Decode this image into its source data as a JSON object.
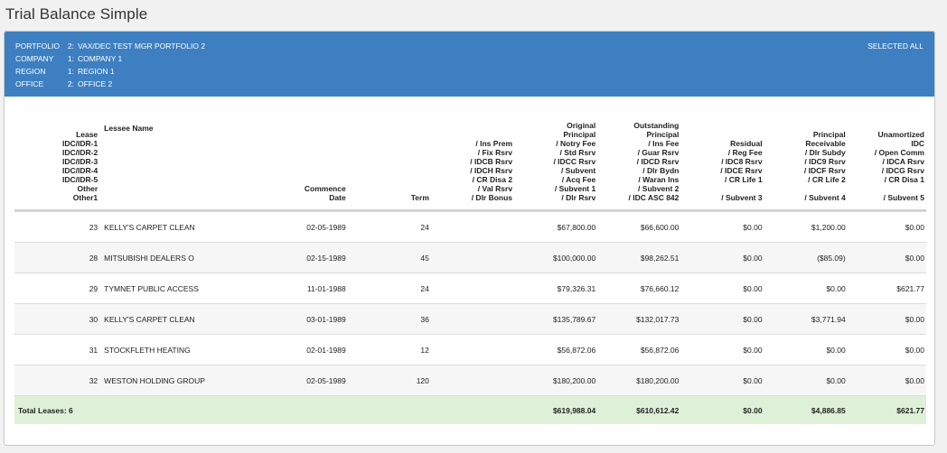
{
  "page": {
    "title": "Trial Balance Simple"
  },
  "filters": {
    "selected_label": "SELECTED ALL",
    "rows": [
      {
        "label": "PORTFOLIO",
        "num": "2:",
        "value": "VAX/DEC TEST MGR PORTFOLIO 2"
      },
      {
        "label": "COMPANY",
        "num": "1:",
        "value": "COMPANY 1"
      },
      {
        "label": "REGION",
        "num": "1:",
        "value": "REGION 1"
      },
      {
        "label": "OFFICE",
        "num": "2:",
        "value": "OFFICE 2"
      }
    ]
  },
  "headers": {
    "lease": [
      "Lease",
      "IDC/IDR-1",
      "IDC/IDR-2",
      "IDC/IDR-3",
      "IDC/IDR-4",
      "IDC/IDR-5",
      "Other",
      "Other1"
    ],
    "lessee": [
      "Lessee Name"
    ],
    "commence": [
      "Commence",
      "Date"
    ],
    "term": [
      "Term"
    ],
    "ins": [
      "/ Ins Prem",
      "/ Fix Rsrv",
      "/ IDCB Rsrv",
      "/ IDCH Rsrv",
      "/ CR Disa 2",
      "/ Val Rsrv",
      "/ Dlr Bonus"
    ],
    "original": [
      "Original",
      "Principal",
      "/ Notry Fee",
      "/ Std Rsrv",
      "/ IDCC Rsrv",
      "/ Subvent",
      "/ Acq Fee",
      "/ Subvent 1",
      "/ Dlr Rsrv"
    ],
    "outstanding": [
      "Outstanding",
      "Principal",
      "/ Ins Fee",
      "/ Guar Rsrv",
      "/ IDCD Rsrv",
      "/ Dlr Bydn",
      "/ Waran Ins",
      "/ Subvent 2",
      "/ IDC ASC 842"
    ],
    "residual": [
      "Residual",
      "/ Reg Fee",
      "/ IDC8 Rsrv",
      "/ IDCE Rsrv",
      "/ CR Life 1",
      "",
      "/ Subvent 3"
    ],
    "receivable": [
      "Principal",
      "Receivable",
      "/ Dlr Subdy",
      "/ IDC9 Rsrv",
      "/ IDCF Rsrv",
      "/ CR Life 2",
      "",
      "/ Subvent 4"
    ],
    "unamortized": [
      "Unamortized",
      "IDC",
      "/ Open Comm",
      "/ IDCA Rsrv",
      "/ IDCG Rsrv",
      "/ CR Disa 1",
      "",
      "/ Subvent 5"
    ]
  },
  "rows": [
    {
      "lease": "23",
      "lessee": "KELLY'S CARPET CLEAN",
      "date": "02-05-1989",
      "term": "24",
      "original": "$67,800.00",
      "outstanding": "$66,600.00",
      "residual": "$0.00",
      "receivable": "$1,200.00",
      "unamortized": "$0.00"
    },
    {
      "lease": "28",
      "lessee": "MITSUBISHI DEALERS O",
      "date": "02-15-1989",
      "term": "45",
      "original": "$100,000.00",
      "outstanding": "$98,262.51",
      "residual": "$0.00",
      "receivable": "($85.09)",
      "unamortized": "$0.00"
    },
    {
      "lease": "29",
      "lessee": "TYMNET PUBLIC ACCESS",
      "date": "11-01-1988",
      "term": "24",
      "original": "$79,326.31",
      "outstanding": "$76,660.12",
      "residual": "$0.00",
      "receivable": "$0.00",
      "unamortized": "$621.77"
    },
    {
      "lease": "30",
      "lessee": "KELLY'S CARPET CLEAN",
      "date": "03-01-1989",
      "term": "36",
      "original": "$135,789.67",
      "outstanding": "$132,017.73",
      "residual": "$0.00",
      "receivable": "$3,771.94",
      "unamortized": "$0.00"
    },
    {
      "lease": "31",
      "lessee": "STOCKFLETH HEATING",
      "date": "02-01-1989",
      "term": "12",
      "original": "$56,872.06",
      "outstanding": "$56,872.06",
      "residual": "$0.00",
      "receivable": "$0.00",
      "unamortized": "$0.00"
    },
    {
      "lease": "32",
      "lessee": "WESTON HOLDING GROUP",
      "date": "02-05-1989",
      "term": "120",
      "original": "$180,200.00",
      "outstanding": "$180,200.00",
      "residual": "$0.00",
      "receivable": "$0.00",
      "unamortized": "$0.00"
    }
  ],
  "totals": {
    "label": "Total Leases: 6",
    "original": "$619,988.04",
    "outstanding": "$610,612.42",
    "residual": "$0.00",
    "receivable": "$4,886.85",
    "unamortized": "$621.77"
  }
}
